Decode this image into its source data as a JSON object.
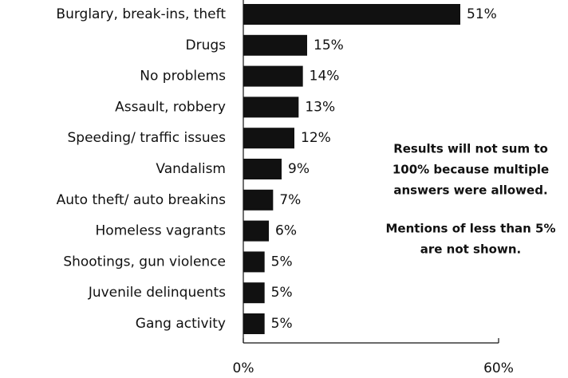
{
  "chart_data": {
    "type": "bar",
    "orientation": "horizontal",
    "categories": [
      "Burglary, break-ins, theft",
      "Drugs",
      "No problems",
      "Assault, robbery",
      "Speeding/ traffic issues",
      "Vandalism",
      "Auto theft/ auto breakins",
      "Homeless vagrants",
      "Shootings, gun violence",
      "Juvenile delinquents",
      "Gang activity"
    ],
    "values": [
      51,
      15,
      14,
      13,
      12,
      9,
      7,
      6,
      5,
      5,
      5
    ],
    "value_labels": [
      "51%",
      "15%",
      "14%",
      "13%",
      "12%",
      "9%",
      "7%",
      "6%",
      "5%",
      "5%",
      "5%"
    ],
    "color": "#111111",
    "xlim": [
      0,
      60
    ],
    "xticks": [
      {
        "value": 0,
        "label": "0%"
      },
      {
        "value": 60,
        "label": "60%"
      }
    ],
    "annotations": [
      [
        "Results will not sum to",
        "100% because multiple",
        "answers were allowed."
      ],
      [
        "Mentions of less than 5%",
        "are not shown."
      ]
    ]
  }
}
